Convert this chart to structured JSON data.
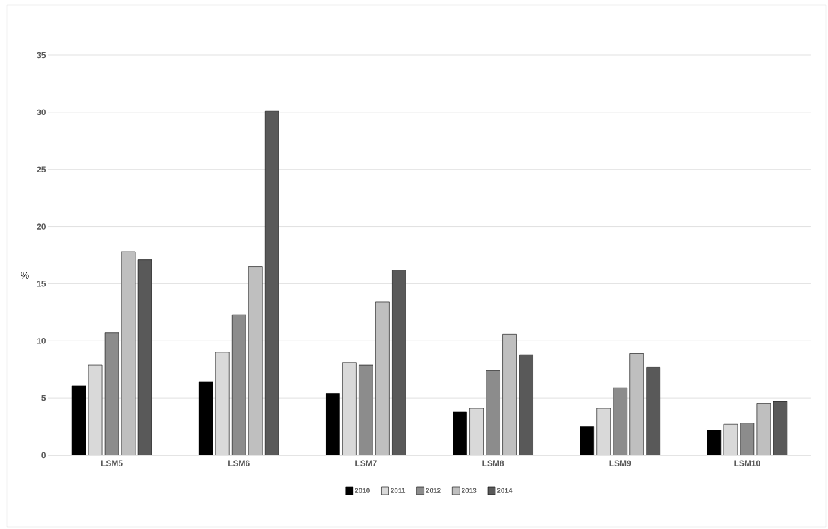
{
  "chart_data": {
    "type": "bar",
    "ylabel": "%",
    "categories": [
      "LSM5",
      "LSM6",
      "LSM7",
      "LSM8",
      "LSM9",
      "LSM10"
    ],
    "series": [
      {
        "name": "2010",
        "color": "#000000",
        "values": [
          6.1,
          6.4,
          5.4,
          3.8,
          2.5,
          2.2
        ]
      },
      {
        "name": "2011",
        "color": "#d9d9d9",
        "values": [
          7.9,
          9.0,
          8.1,
          4.1,
          4.1,
          2.7
        ]
      },
      {
        "name": "2012",
        "color": "#8c8c8c",
        "values": [
          10.7,
          12.3,
          7.9,
          7.4,
          5.9,
          2.8
        ]
      },
      {
        "name": "2013",
        "color": "#bfbfbf",
        "values": [
          17.8,
          16.5,
          13.4,
          10.6,
          8.9,
          4.5
        ]
      },
      {
        "name": "2014",
        "color": "#595959",
        "values": [
          17.1,
          30.1,
          16.2,
          8.8,
          7.7,
          4.7
        ]
      }
    ],
    "ylim": [
      0,
      35
    ],
    "yticks": [
      0,
      5,
      10,
      15,
      20,
      25,
      30,
      35
    ],
    "grid": "y",
    "legend": "bottom"
  }
}
